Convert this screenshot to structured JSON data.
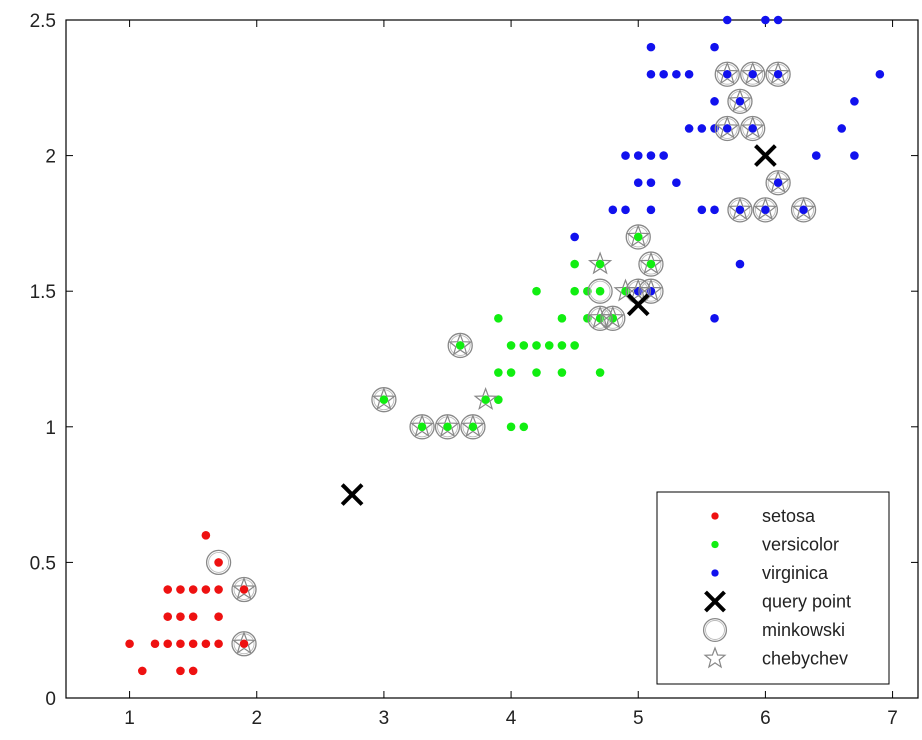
{
  "chart_data": {
    "type": "scatter",
    "title": "",
    "xlabel": "",
    "ylabel": "",
    "xlim": [
      0.5,
      7.2
    ],
    "ylim": [
      0,
      2.5
    ],
    "xticks": [
      1,
      2,
      3,
      4,
      5,
      6,
      7
    ],
    "yticks": [
      0,
      0.5,
      1,
      1.5,
      2,
      2.5
    ],
    "xtick_labels": [
      "1",
      "2",
      "3",
      "4",
      "5",
      "6",
      "7"
    ],
    "ytick_labels": [
      "0",
      "0.5",
      "1",
      "1.5",
      "2",
      "2.5"
    ],
    "grid": false,
    "legend_position": "bottom-right",
    "series": [
      {
        "name": "setosa",
        "marker": "dot",
        "color": "#ee1111",
        "points": [
          [
            1.0,
            0.2
          ],
          [
            1.1,
            0.1
          ],
          [
            1.2,
            0.2
          ],
          [
            1.3,
            0.2
          ],
          [
            1.3,
            0.3
          ],
          [
            1.3,
            0.4
          ],
          [
            1.4,
            0.1
          ],
          [
            1.4,
            0.2
          ],
          [
            1.4,
            0.3
          ],
          [
            1.4,
            0.4
          ],
          [
            1.5,
            0.1
          ],
          [
            1.5,
            0.2
          ],
          [
            1.5,
            0.3
          ],
          [
            1.5,
            0.4
          ],
          [
            1.6,
            0.2
          ],
          [
            1.6,
            0.4
          ],
          [
            1.6,
            0.6
          ],
          [
            1.7,
            0.2
          ],
          [
            1.7,
            0.3
          ],
          [
            1.7,
            0.4
          ],
          [
            1.7,
            0.5
          ],
          [
            1.9,
            0.2
          ],
          [
            1.9,
            0.4
          ]
        ]
      },
      {
        "name": "versicolor",
        "marker": "dot",
        "color": "#11ee11",
        "points": [
          [
            3.0,
            1.1
          ],
          [
            3.3,
            1.0
          ],
          [
            3.5,
            1.0
          ],
          [
            3.6,
            1.3
          ],
          [
            3.7,
            1.0
          ],
          [
            3.8,
            1.1
          ],
          [
            3.9,
            1.1
          ],
          [
            3.9,
            1.2
          ],
          [
            3.9,
            1.4
          ],
          [
            4.0,
            1.0
          ],
          [
            4.0,
            1.2
          ],
          [
            4.0,
            1.3
          ],
          [
            4.1,
            1.0
          ],
          [
            4.1,
            1.3
          ],
          [
            4.2,
            1.2
          ],
          [
            4.2,
            1.3
          ],
          [
            4.2,
            1.5
          ],
          [
            4.3,
            1.3
          ],
          [
            4.4,
            1.2
          ],
          [
            4.4,
            1.3
          ],
          [
            4.4,
            1.4
          ],
          [
            4.5,
            1.3
          ],
          [
            4.5,
            1.5
          ],
          [
            4.5,
            1.6
          ],
          [
            4.6,
            1.4
          ],
          [
            4.6,
            1.5
          ],
          [
            4.7,
            1.2
          ],
          [
            4.7,
            1.4
          ],
          [
            4.7,
            1.5
          ],
          [
            4.7,
            1.6
          ],
          [
            4.8,
            1.4
          ],
          [
            4.9,
            1.5
          ],
          [
            5.0,
            1.7
          ],
          [
            5.1,
            1.6
          ]
        ]
      },
      {
        "name": "virginica",
        "marker": "dot",
        "color": "#1111ee",
        "points": [
          [
            4.5,
            1.7
          ],
          [
            4.8,
            1.8
          ],
          [
            4.9,
            1.8
          ],
          [
            4.9,
            2.0
          ],
          [
            5.0,
            1.5
          ],
          [
            5.0,
            1.9
          ],
          [
            5.0,
            2.0
          ],
          [
            5.1,
            1.5
          ],
          [
            5.1,
            1.8
          ],
          [
            5.1,
            1.9
          ],
          [
            5.1,
            2.0
          ],
          [
            5.1,
            2.3
          ],
          [
            5.1,
            2.4
          ],
          [
            5.2,
            2.0
          ],
          [
            5.2,
            2.3
          ],
          [
            5.3,
            1.9
          ],
          [
            5.3,
            2.3
          ],
          [
            5.4,
            2.1
          ],
          [
            5.4,
            2.3
          ],
          [
            5.5,
            1.8
          ],
          [
            5.5,
            2.1
          ],
          [
            5.6,
            1.4
          ],
          [
            5.6,
            1.8
          ],
          [
            5.6,
            2.1
          ],
          [
            5.6,
            2.2
          ],
          [
            5.6,
            2.4
          ],
          [
            5.7,
            2.1
          ],
          [
            5.7,
            2.3
          ],
          [
            5.7,
            2.5
          ],
          [
            5.8,
            1.6
          ],
          [
            5.8,
            1.8
          ],
          [
            5.8,
            2.2
          ],
          [
            5.9,
            2.1
          ],
          [
            5.9,
            2.3
          ],
          [
            6.0,
            1.8
          ],
          [
            6.0,
            2.5
          ],
          [
            6.1,
            1.9
          ],
          [
            6.1,
            2.3
          ],
          [
            6.1,
            2.5
          ],
          [
            6.3,
            1.8
          ],
          [
            6.4,
            2.0
          ],
          [
            6.6,
            2.1
          ],
          [
            6.7,
            2.0
          ],
          [
            6.7,
            2.2
          ],
          [
            6.9,
            2.3
          ]
        ]
      },
      {
        "name": "query point",
        "marker": "x",
        "color": "#000000",
        "points": [
          [
            2.75,
            0.75
          ],
          [
            5.0,
            1.45
          ],
          [
            6.0,
            2.0
          ]
        ]
      },
      {
        "name": "minkowski",
        "marker": "circle",
        "color": "#888888",
        "points": [
          [
            1.7,
            0.5
          ],
          [
            1.9,
            0.2
          ],
          [
            1.9,
            0.4
          ],
          [
            3.0,
            1.1
          ],
          [
            3.3,
            1.0
          ],
          [
            3.5,
            1.0
          ],
          [
            3.6,
            1.3
          ],
          [
            3.7,
            1.0
          ],
          [
            4.7,
            1.4
          ],
          [
            4.8,
            1.4
          ],
          [
            4.7,
            1.5
          ],
          [
            5.0,
            1.5
          ],
          [
            5.0,
            1.7
          ],
          [
            5.1,
            1.6
          ],
          [
            5.1,
            1.5
          ],
          [
            5.7,
            2.3
          ],
          [
            5.9,
            2.3
          ],
          [
            6.1,
            2.3
          ],
          [
            5.8,
            2.2
          ],
          [
            5.7,
            2.1
          ],
          [
            5.9,
            2.1
          ],
          [
            6.1,
            1.9
          ],
          [
            5.8,
            1.8
          ],
          [
            6.0,
            1.8
          ],
          [
            6.3,
            1.8
          ]
        ]
      },
      {
        "name": "chebychev",
        "marker": "star",
        "color": "#888888",
        "points": [
          [
            1.9,
            0.2
          ],
          [
            1.9,
            0.4
          ],
          [
            3.0,
            1.1
          ],
          [
            3.3,
            1.0
          ],
          [
            3.5,
            1.0
          ],
          [
            3.6,
            1.3
          ],
          [
            3.7,
            1.0
          ],
          [
            3.8,
            1.1
          ],
          [
            4.7,
            1.6
          ],
          [
            4.7,
            1.4
          ],
          [
            4.8,
            1.4
          ],
          [
            4.9,
            1.5
          ],
          [
            5.0,
            1.5
          ],
          [
            5.0,
            1.7
          ],
          [
            5.1,
            1.6
          ],
          [
            5.1,
            1.5
          ],
          [
            5.7,
            2.3
          ],
          [
            5.9,
            2.3
          ],
          [
            6.1,
            2.3
          ],
          [
            5.8,
            2.2
          ],
          [
            5.7,
            2.1
          ],
          [
            5.9,
            2.1
          ],
          [
            6.1,
            1.9
          ],
          [
            5.8,
            1.8
          ],
          [
            6.0,
            1.8
          ],
          [
            6.3,
            1.8
          ]
        ]
      }
    ]
  }
}
